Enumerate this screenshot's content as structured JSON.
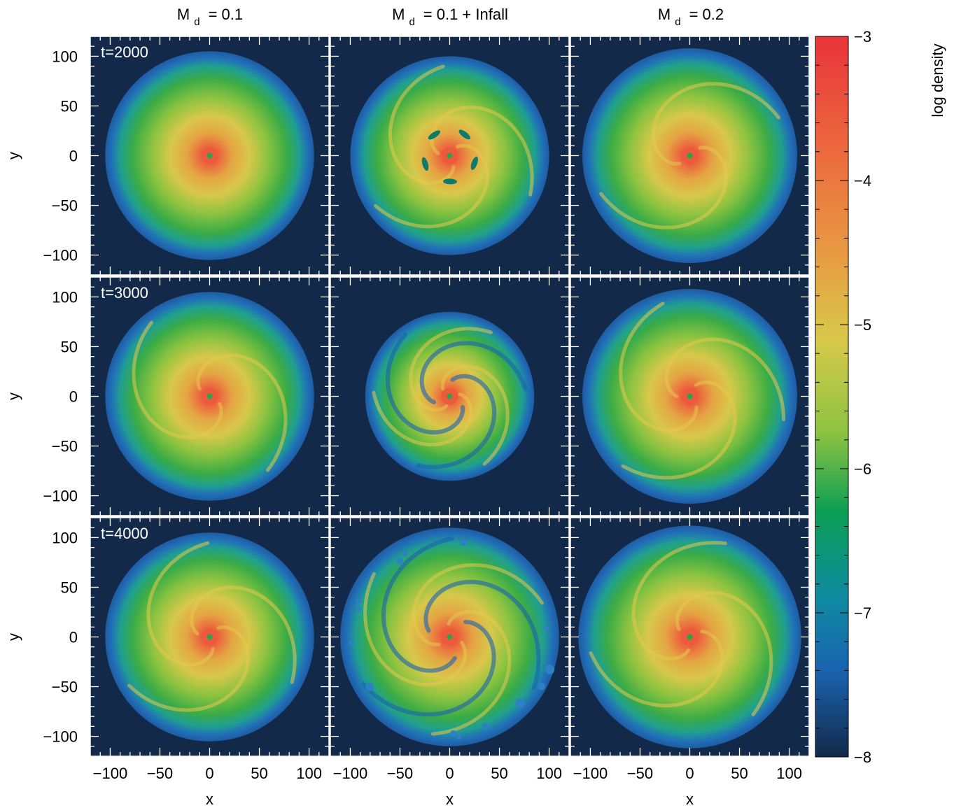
{
  "chart_data": {
    "type": "heatmap",
    "layout": "3x3 grid of panels, shared axes",
    "columns": [
      {
        "label_main": "M",
        "label_sub": "d",
        "label_rest": "= 0.1"
      },
      {
        "label_main": "M",
        "label_sub": "d",
        "label_rest": "= 0.1 + Infall"
      },
      {
        "label_main": "M",
        "label_sub": "d",
        "label_rest": "= 0.2"
      }
    ],
    "rows": [
      {
        "time_label": "t=2000"
      },
      {
        "time_label": "t=3000"
      },
      {
        "time_label": "t=4000"
      }
    ],
    "xlabel": "x",
    "ylabel": "y",
    "xlim": [
      -120,
      120
    ],
    "ylim": [
      -120,
      120
    ],
    "x_ticks": [
      "−100",
      "−50",
      "0",
      "50",
      "100"
    ],
    "x_tick_values": [
      -100,
      -50,
      0,
      50,
      100
    ],
    "y_ticks": [
      "100",
      "50",
      "0",
      "−50",
      "−100"
    ],
    "y_tick_values": [
      100,
      50,
      0,
      -50,
      -100
    ],
    "colorbar": {
      "label": "log density",
      "range": [
        -8,
        -3
      ],
      "ticks": [
        "−3",
        "−4",
        "−5",
        "−6",
        "−7",
        "−8"
      ],
      "tick_values": [
        -3,
        -4,
        -5,
        -6,
        -7,
        -8
      ],
      "colors": [
        "#13294a",
        "#1a63b0",
        "#0b9e55",
        "#46b434",
        "#d8c63e",
        "#ec7a3d",
        "#e8343a"
      ]
    },
    "panels": [
      {
        "row": 0,
        "col": 0,
        "disk_radius": 105,
        "arms": 0,
        "structure": "smooth disk, faint spiral texture"
      },
      {
        "row": 0,
        "col": 1,
        "disk_radius": 100,
        "arms": 3,
        "structure": "irregular outer edge, inner gaps near r=25"
      },
      {
        "row": 0,
        "col": 2,
        "disk_radius": 108,
        "arms": 2,
        "structure": "smooth disk, tightly wound inner spirals"
      },
      {
        "row": 1,
        "col": 0,
        "disk_radius": 105,
        "arms": 2,
        "structure": "smooth disk with developing spirals"
      },
      {
        "row": 1,
        "col": 1,
        "disk_radius": 85,
        "arms": 3,
        "structure": "open spiral arms, gaps, infall streamers"
      },
      {
        "row": 1,
        "col": 2,
        "disk_radius": 108,
        "arms": 3,
        "structure": "prominent spiral arms"
      },
      {
        "row": 2,
        "col": 0,
        "disk_radius": 105,
        "arms": 3,
        "structure": "multiple spiral arms"
      },
      {
        "row": 2,
        "col": 1,
        "disk_radius": 110,
        "arms": 3,
        "structure": "fragmented outer arms and clumps"
      },
      {
        "row": 2,
        "col": 2,
        "disk_radius": 112,
        "arms": 3,
        "structure": "strong spiral arms, filaments"
      }
    ],
    "background_color": "#13294a",
    "grid": false
  }
}
